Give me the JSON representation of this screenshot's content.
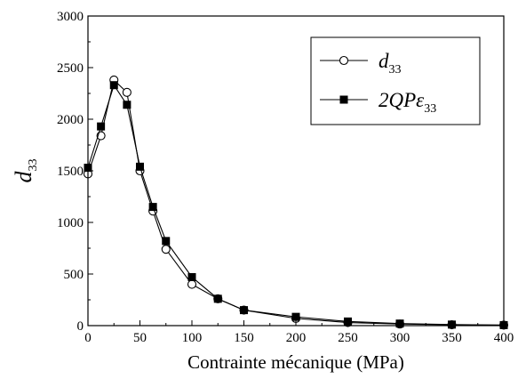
{
  "chart_data": {
    "type": "line",
    "xlabel": "Contrainte mécanique (MPa)",
    "ylabel": "d",
    "ylabel_sub": "33",
    "xlim": [
      0,
      400
    ],
    "ylim": [
      0,
      3000
    ],
    "xticks": [
      0,
      50,
      100,
      150,
      200,
      250,
      300,
      350,
      400
    ],
    "yticks": [
      0,
      500,
      1000,
      1500,
      2000,
      2500,
      3000
    ],
    "grid": false,
    "legend_position": "top-right",
    "series": [
      {
        "name": "d33",
        "legend": {
          "main": "d",
          "sub": "33"
        },
        "marker": "open-circle",
        "x": [
          0,
          12.5,
          25,
          37.5,
          50,
          62.5,
          75,
          100,
          125,
          150,
          200,
          250,
          300,
          350,
          400
        ],
        "y": [
          1470,
          1840,
          2380,
          2260,
          1500,
          1110,
          740,
          400,
          260,
          150,
          70,
          30,
          15,
          8,
          5
        ]
      },
      {
        "name": "2QPε33",
        "legend": {
          "main": "2QPε",
          "sub": "33"
        },
        "marker": "filled-square",
        "x": [
          0,
          12.5,
          25,
          37.5,
          50,
          62.5,
          75,
          100,
          125,
          150,
          200,
          250,
          300,
          350,
          400
        ],
        "y": [
          1530,
          1930,
          2330,
          2140,
          1540,
          1150,
          820,
          470,
          260,
          150,
          85,
          40,
          20,
          10,
          5
        ]
      }
    ],
    "colors": {
      "line": "#000000",
      "marker_fill": "#000000",
      "open_fill": "#ffffff"
    }
  }
}
